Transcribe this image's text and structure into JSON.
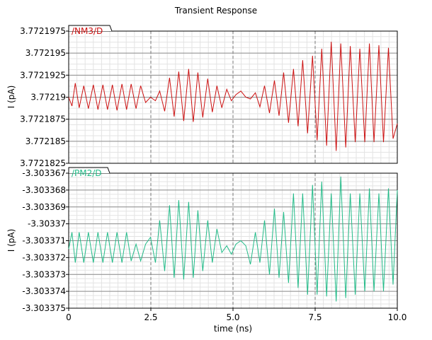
{
  "chart_data": [
    {
      "type": "line",
      "title": "Transient Response",
      "ylabel": "I (pA)",
      "xlim": [
        0,
        10
      ],
      "ylim": [
        3.7721825,
        3.7721975
      ],
      "y_ticks": [
        "3.7721975",
        "3.772195",
        "3.7721925",
        "3.77219",
        "3.7721875",
        "3.772185",
        "3.7721825"
      ],
      "y_tick_values": [
        3.7721975,
        3.772195,
        3.7721925,
        3.77219,
        3.7721875,
        3.772185,
        3.7721825
      ],
      "grid": true,
      "legend": "top-left",
      "series": [
        {
          "name": "/NM3/D",
          "color": "#cc1111",
          "x": [
            0.0,
            0.1,
            0.2,
            0.32,
            0.46,
            0.6,
            0.75,
            0.89,
            1.04,
            1.18,
            1.33,
            1.47,
            1.62,
            1.76,
            1.9,
            2.05,
            2.19,
            2.34,
            2.49,
            2.64,
            2.77,
            2.92,
            3.07,
            3.21,
            3.35,
            3.5,
            3.65,
            3.79,
            3.93,
            4.08,
            4.23,
            4.37,
            4.51,
            4.66,
            4.81,
            4.95,
            5.09,
            5.24,
            5.39,
            5.53,
            5.68,
            5.82,
            5.96,
            6.11,
            6.26,
            6.4,
            6.54,
            6.69,
            6.84,
            6.98,
            7.12,
            7.27,
            7.42,
            7.56,
            7.7,
            7.85,
            7.99,
            8.14,
            8.28,
            8.43,
            8.57,
            8.72,
            8.86,
            9.01,
            9.15,
            9.29,
            9.44,
            9.58,
            9.73,
            9.87,
            10.0
          ],
          "y": [
            3.77219,
            3.772189,
            3.7721916,
            3.7721888,
            3.7721913,
            3.7721887,
            3.7721914,
            3.7721886,
            3.7721914,
            3.7721886,
            3.7721914,
            3.7721885,
            3.7721915,
            3.7721886,
            3.7721915,
            3.7721887,
            3.7721913,
            3.7721894,
            3.77219,
            3.7721896,
            3.7721907,
            3.7721884,
            3.7721922,
            3.7721878,
            3.7721929,
            3.7721873,
            3.7721932,
            3.7721872,
            3.7721928,
            3.7721877,
            3.7721921,
            3.7721883,
            3.7721913,
            3.7721888,
            3.7721909,
            3.7721896,
            3.7721903,
            3.7721907,
            3.77219,
            3.7721898,
            3.7721905,
            3.7721889,
            3.7721913,
            3.7721882,
            3.7721919,
            3.7721879,
            3.7721928,
            3.7721871,
            3.7721932,
            3.7721867,
            3.7721942,
            3.7721859,
            3.7721947,
            3.7721851,
            3.7721955,
            3.7721845,
            3.7721963,
            3.7721839,
            3.7721961,
            3.7721843,
            3.7721958,
            3.7721849,
            3.7721955,
            3.7721849,
            3.7721961,
            3.7721849,
            3.7721959,
            3.7721849,
            3.7721956,
            3.7721853,
            3.772187
          ]
        }
      ]
    },
    {
      "type": "line",
      "xlabel": "time (ns)",
      "ylabel": "I (pA)",
      "xlim": [
        0,
        10
      ],
      "ylim": [
        -3.303375,
        -3.303367
      ],
      "x_ticks": [
        "0",
        "2.5",
        "5.0",
        "7.5",
        "10.0"
      ],
      "x_tick_values": [
        0,
        2.5,
        5.0,
        7.5,
        10.0
      ],
      "y_ticks": [
        "-3.303367",
        "-3.303368",
        "-3.303369",
        "-3.30337",
        "-3.303371",
        "-3.303372",
        "-3.303373",
        "-3.303374",
        "-3.303375"
      ],
      "y_tick_values": [
        -3.303367,
        -3.303368,
        -3.303369,
        -3.30337,
        -3.303371,
        -3.303372,
        -3.303373,
        -3.303374,
        -3.303375
      ],
      "grid": true,
      "legend": "top-left",
      "series": [
        {
          "name": "/PM2/D",
          "color": "#22bb88",
          "x": [
            0.0,
            0.1,
            0.2,
            0.32,
            0.46,
            0.6,
            0.75,
            0.89,
            1.04,
            1.18,
            1.33,
            1.47,
            1.62,
            1.76,
            1.9,
            2.05,
            2.19,
            2.34,
            2.49,
            2.64,
            2.77,
            2.92,
            3.07,
            3.21,
            3.35,
            3.5,
            3.65,
            3.79,
            3.93,
            4.08,
            4.23,
            4.37,
            4.51,
            4.66,
            4.81,
            4.95,
            5.09,
            5.24,
            5.39,
            5.53,
            5.68,
            5.82,
            5.96,
            6.11,
            6.26,
            6.4,
            6.54,
            6.69,
            6.84,
            6.98,
            7.12,
            7.27,
            7.42,
            7.56,
            7.7,
            7.85,
            7.99,
            8.14,
            8.28,
            8.43,
            8.57,
            8.72,
            8.86,
            9.01,
            9.15,
            9.29,
            9.44,
            9.58,
            9.73,
            9.87,
            10.0
          ],
          "y": [
            -3.3033715,
            -3.3033705,
            -3.3033723,
            -3.3033705,
            -3.3033723,
            -3.3033705,
            -3.3033723,
            -3.3033705,
            -3.3033723,
            -3.3033705,
            -3.3033723,
            -3.3033705,
            -3.3033723,
            -3.3033705,
            -3.3033722,
            -3.3033712,
            -3.3033722,
            -3.3033712,
            -3.3033708,
            -3.3033723,
            -3.3033698,
            -3.3033728,
            -3.3033689,
            -3.3033732,
            -3.3033686,
            -3.3033733,
            -3.3033687,
            -3.3033732,
            -3.3033692,
            -3.3033728,
            -3.3033698,
            -3.3033723,
            -3.3033703,
            -3.3033717,
            -3.3033713,
            -3.3033718,
            -3.3033712,
            -3.303371,
            -3.3033713,
            -3.3033724,
            -3.3033705,
            -3.3033723,
            -3.3033698,
            -3.303373,
            -3.3033691,
            -3.3033732,
            -3.3033693,
            -3.3033735,
            -3.3033682,
            -3.3033738,
            -3.3033682,
            -3.3033742,
            -3.3033677,
            -3.3033742,
            -3.3033675,
            -3.3033743,
            -3.3033682,
            -3.3033746,
            -3.3033672,
            -3.3033744,
            -3.3033682,
            -3.3033742,
            -3.3033682,
            -3.303374,
            -3.3033679,
            -3.303374,
            -3.3033682,
            -3.303374,
            -3.3033679,
            -3.3033736,
            -3.303368
          ]
        }
      ]
    }
  ]
}
